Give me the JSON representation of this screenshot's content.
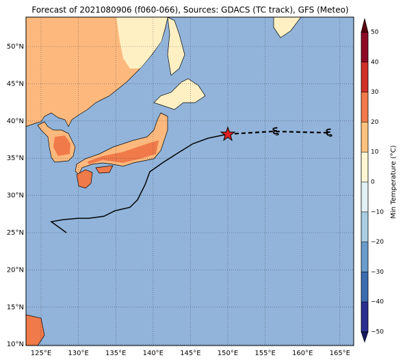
{
  "map": {
    "title": "Forecast of 2021080906 (f060-066), Sources: GDACS (TC track), GFS (Meteo)",
    "lon_labels": [
      "125°E",
      "130°E",
      "135°E",
      "140°E",
      "145°E",
      "150°E",
      "155°E",
      "160°E",
      "165°E"
    ],
    "lat_labels": [
      "50°N",
      "45°N",
      "40°N",
      "35°N",
      "30°N",
      "25°N",
      "20°N",
      "15°N",
      "10°N"
    ],
    "colorbar": {
      "label": "Min Temperature (°C)",
      "ticks": [
        "50",
        "40",
        "30",
        "20",
        "10",
        "0",
        "−10",
        "−20",
        "−30",
        "−40",
        "−50"
      ]
    }
  }
}
